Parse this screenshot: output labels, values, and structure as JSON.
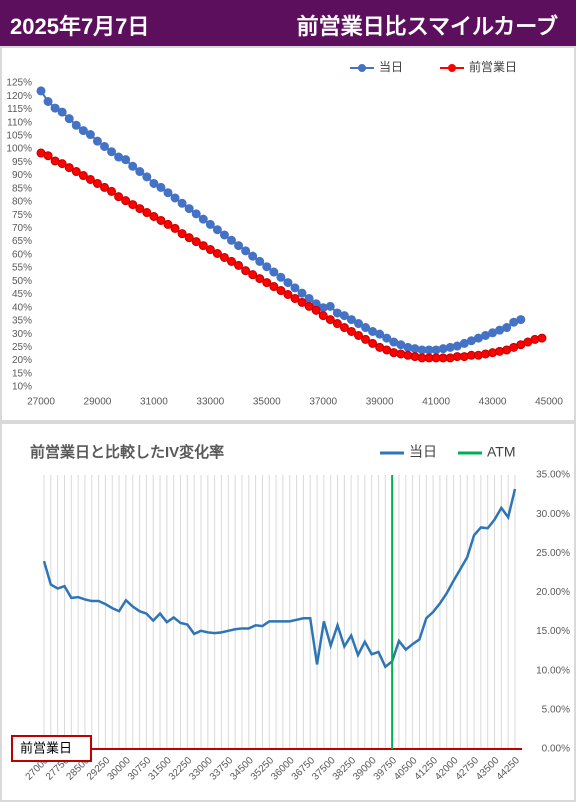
{
  "header": {
    "date": "2025年7月7日",
    "title": "前営業日比スマイルカーブ"
  },
  "chart_data": [
    {
      "type": "line",
      "markers": true,
      "legend": "top-right",
      "xlim": [
        27000,
        45000
      ],
      "xticks": [
        27000,
        29000,
        31000,
        33000,
        35000,
        37000,
        39000,
        41000,
        43000,
        45000
      ],
      "ylim": [
        10,
        125
      ],
      "yticks": [
        {
          "value": 10,
          "label": "10%"
        },
        {
          "value": 15,
          "label": "15%"
        },
        {
          "value": 20,
          "label": "20%"
        },
        {
          "value": 25,
          "label": "25%"
        },
        {
          "value": 30,
          "label": "30%"
        },
        {
          "value": 35,
          "label": "35%"
        },
        {
          "value": 40,
          "label": "40%"
        },
        {
          "value": 45,
          "label": "45%"
        },
        {
          "value": 50,
          "label": "50%"
        },
        {
          "value": 55,
          "label": "55%"
        },
        {
          "value": 60,
          "label": "60%"
        },
        {
          "value": 65,
          "label": "65%"
        },
        {
          "value": 70,
          "label": "70%"
        },
        {
          "value": 75,
          "label": "75%"
        },
        {
          "value": 80,
          "label": "80%"
        },
        {
          "value": 85,
          "label": "85%"
        },
        {
          "value": 90,
          "label": "90%"
        },
        {
          "value": 95,
          "label": "95%"
        },
        {
          "value": 100,
          "label": "100%"
        },
        {
          "value": 105,
          "label": "105%"
        },
        {
          "value": 110,
          "label": "110%"
        },
        {
          "value": 115,
          "label": "115%"
        },
        {
          "value": 120,
          "label": "120%"
        },
        {
          "value": 125,
          "label": "125%"
        }
      ],
      "series": [
        {
          "name": "当日",
          "color": "#4472c4",
          "x": [
            27000,
            27250,
            27500,
            27750,
            28000,
            28250,
            28500,
            28750,
            29000,
            29250,
            29500,
            29750,
            30000,
            30250,
            30500,
            30750,
            31000,
            31250,
            31500,
            31750,
            32000,
            32250,
            32500,
            32750,
            33000,
            33250,
            33500,
            33750,
            34000,
            34250,
            34500,
            34750,
            35000,
            35250,
            35500,
            35750,
            36000,
            36250,
            36500,
            36750,
            37000,
            37250,
            37500,
            37750,
            38000,
            38250,
            38500,
            38750,
            39000,
            39250,
            39500,
            39750,
            40000,
            40250,
            40500,
            40750,
            41000,
            41250,
            41500,
            41750,
            42000,
            42250,
            42500,
            42750,
            43000,
            43250,
            43500,
            43750,
            44000
          ],
          "values": [
            122,
            118,
            115.5,
            114,
            111.5,
            109,
            107,
            105.5,
            103,
            101,
            99,
            97,
            96,
            93.5,
            91.5,
            89.5,
            87,
            85.5,
            83.5,
            81.5,
            79.5,
            77.5,
            75.5,
            73.5,
            71.5,
            69.5,
            67.5,
            65.5,
            63.5,
            61.5,
            59.5,
            57.5,
            55.5,
            53.5,
            51.5,
            49.5,
            47.5,
            45.5,
            43.5,
            41.5,
            40,
            40.5,
            38,
            37,
            35.5,
            34,
            32.5,
            31,
            30,
            28.5,
            27,
            26,
            25,
            24.5,
            24,
            24,
            24,
            24.5,
            25,
            25.5,
            26.5,
            27.5,
            28.5,
            29.5,
            30.5,
            31.5,
            32.5,
            34.5,
            35.5
          ]
        },
        {
          "name": "前営業日",
          "color": "#ff0000",
          "x": [
            27000,
            27250,
            27500,
            27750,
            28000,
            28250,
            28500,
            28750,
            29000,
            29250,
            29500,
            29750,
            30000,
            30250,
            30500,
            30750,
            31000,
            31250,
            31500,
            31750,
            32000,
            32250,
            32500,
            32750,
            33000,
            33250,
            33500,
            33750,
            34000,
            34250,
            34500,
            34750,
            35000,
            35250,
            35500,
            35750,
            36000,
            36250,
            36500,
            36750,
            37000,
            37250,
            37500,
            37750,
            38000,
            38250,
            38500,
            38750,
            39000,
            39250,
            39500,
            39750,
            40000,
            40250,
            40500,
            40750,
            41000,
            41250,
            41500,
            41750,
            42000,
            42250,
            42500,
            42750,
            43000,
            43250,
            43500,
            43750,
            44000,
            44250,
            44500,
            44750
          ],
          "values": [
            98.5,
            97.5,
            95.5,
            94.5,
            93,
            91.5,
            90,
            88.5,
            87,
            85.5,
            84,
            82,
            80.5,
            79,
            77.5,
            76,
            74.5,
            73,
            71.5,
            70,
            68,
            66.5,
            65,
            63.5,
            62,
            60.5,
            59,
            57.5,
            56,
            54,
            52.5,
            51,
            49.5,
            48,
            46.5,
            45,
            43.5,
            42,
            40.5,
            39,
            37,
            35.5,
            34,
            32.5,
            31,
            29.5,
            28,
            26.5,
            25,
            24,
            23,
            22.5,
            22,
            21.5,
            21,
            21,
            21,
            21,
            21,
            21.5,
            21.5,
            22,
            22,
            22.5,
            23,
            23.5,
            24,
            25,
            26,
            27,
            28,
            28.5
          ]
        }
      ]
    },
    {
      "type": "line",
      "markers": false,
      "title": "前営業日と比較したIV変化率",
      "grid": "x",
      "legend": "top-right",
      "y_axis_side": "right",
      "xlim": [
        27000,
        44250
      ],
      "xticks": [
        27000,
        27750,
        28500,
        29250,
        30000,
        30750,
        31500,
        32250,
        33000,
        33750,
        34500,
        35250,
        36000,
        36750,
        37500,
        38250,
        39000,
        39750,
        40500,
        41250,
        42000,
        42750,
        43500,
        44250
      ],
      "ylim": [
        0,
        35
      ],
      "yticks": [
        {
          "value": 0,
          "label": "0.00%"
        },
        {
          "value": 5,
          "label": "5.00%"
        },
        {
          "value": 10,
          "label": "10.00%"
        },
        {
          "value": 15,
          "label": "15.00%"
        },
        {
          "value": 20,
          "label": "20.00%"
        },
        {
          "value": 25,
          "label": "25.00%"
        },
        {
          "value": 30,
          "label": "30.00%"
        },
        {
          "value": 35,
          "label": "35.00%"
        }
      ],
      "baseline": {
        "label": "前営業日",
        "value": 0,
        "color": "#c00000"
      },
      "series": [
        {
          "name": "当日",
          "color": "#2e75b6",
          "x": [
            27000,
            27250,
            27500,
            27750,
            28000,
            28250,
            28500,
            28750,
            29000,
            29250,
            29500,
            29750,
            30000,
            30250,
            30500,
            30750,
            31000,
            31250,
            31500,
            31750,
            32000,
            32250,
            32500,
            32750,
            33000,
            33250,
            33500,
            33750,
            34000,
            34250,
            34500,
            34750,
            35000,
            35250,
            35500,
            35750,
            36000,
            36250,
            36500,
            36750,
            37000,
            37250,
            37500,
            37750,
            38000,
            38250,
            38500,
            38750,
            39000,
            39250,
            39500,
            39750,
            40000,
            40250,
            40500,
            40750,
            41000,
            41250,
            41500,
            41750,
            42000,
            42250,
            42500,
            42750,
            43000,
            43250,
            43500,
            43750,
            44000,
            44250
          ],
          "values": [
            24,
            21,
            20.5,
            20.8,
            19.3,
            19.4,
            19.1,
            18.9,
            18.9,
            18.5,
            18,
            17.6,
            19,
            18.2,
            17.6,
            17.3,
            16.4,
            17.3,
            16.2,
            16.8,
            16.1,
            15.9,
            14.7,
            15.1,
            14.9,
            14.8,
            14.9,
            15.1,
            15.3,
            15.4,
            15.4,
            15.8,
            15.7,
            16.3,
            16.3,
            16.3,
            16.3,
            16.5,
            16.7,
            16.7,
            10.8,
            16.3,
            13.2,
            15.8,
            13.1,
            14.5,
            12,
            13.7,
            12.1,
            12.4,
            10.5,
            11.2,
            13.8,
            12.7,
            13.4,
            14,
            16.7,
            17.5,
            18.6,
            19.9,
            21.5,
            23,
            24.5,
            27.3,
            28.3,
            28.2,
            29.3,
            30.8,
            29.6,
            33.2
          ]
        },
        {
          "name": "ATM",
          "color": "#00b050",
          "at": 39750
        }
      ]
    }
  ]
}
